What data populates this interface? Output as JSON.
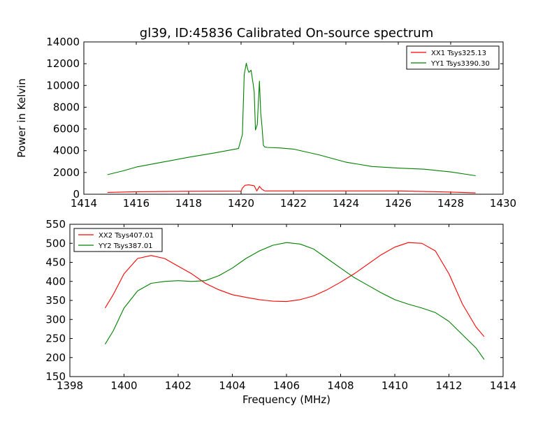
{
  "figure": {
    "title": "gl39, ID:45836 Calibrated On-source spectrum",
    "colors": {
      "red": "#ff0000",
      "green": "#008000",
      "axis": "#000000"
    }
  },
  "chart_data": [
    {
      "type": "line",
      "ylabel": "Power in Kelvin",
      "xlabel": "",
      "xlim": [
        1414,
        1430
      ],
      "ylim": [
        0,
        14000
      ],
      "xticks": [
        "1414",
        "1416",
        "1418",
        "1420",
        "1422",
        "1424",
        "1426",
        "1428",
        "1430"
      ],
      "yticks": [
        "0",
        "2000",
        "4000",
        "6000",
        "8000",
        "10000",
        "12000",
        "14000"
      ],
      "legend_position": "top-right",
      "grid": false,
      "series": [
        {
          "name": "XX1 Tsys325.13",
          "color": "#ff0000",
          "x": [
            1414.9,
            1416,
            1418,
            1420,
            1420.05,
            1420.15,
            1420.3,
            1420.5,
            1420.6,
            1420.7,
            1420.8,
            1420.9,
            1421,
            1422,
            1424,
            1426,
            1428,
            1428.95
          ],
          "y": [
            170,
            230,
            270,
            280,
            560,
            820,
            860,
            780,
            300,
            720,
            450,
            310,
            300,
            300,
            300,
            300,
            200,
            120
          ]
        },
        {
          "name": "YY1 Tsys3390.30",
          "color": "#008000",
          "x": [
            1414.9,
            1415.5,
            1416,
            1417,
            1418,
            1419,
            1419.9,
            1420.05,
            1420.12,
            1420.2,
            1420.25,
            1420.3,
            1420.38,
            1420.45,
            1420.5,
            1420.55,
            1420.62,
            1420.7,
            1420.75,
            1420.8,
            1420.85,
            1420.9,
            1421,
            1421.5,
            1422,
            1423,
            1424,
            1425,
            1426,
            1427,
            1428,
            1428.95
          ],
          "y": [
            1800,
            2150,
            2500,
            2950,
            3400,
            3800,
            4200,
            5500,
            11000,
            12050,
            11500,
            11200,
            11400,
            10300,
            9400,
            5900,
            6400,
            10400,
            7500,
            6200,
            4500,
            4350,
            4300,
            4250,
            4150,
            3600,
            2950,
            2550,
            2400,
            2300,
            2050,
            1700
          ]
        }
      ]
    },
    {
      "type": "line",
      "ylabel": "",
      "xlabel": "Frequency (MHz)",
      "xlim": [
        1398,
        1414
      ],
      "ylim": [
        150,
        550
      ],
      "xticks": [
        "1398",
        "1400",
        "1402",
        "1404",
        "1406",
        "1408",
        "1410",
        "1412",
        "1414"
      ],
      "yticks": [
        "150",
        "200",
        "250",
        "300",
        "350",
        "400",
        "450",
        "500",
        "550"
      ],
      "legend_position": "top-left",
      "grid": false,
      "series": [
        {
          "name": "XX2 Tsys407.01",
          "color": "#ff0000",
          "x": [
            1399.3,
            1399.6,
            1400,
            1400.5,
            1401,
            1401.5,
            1402,
            1402.5,
            1403,
            1403.5,
            1404,
            1404.5,
            1405,
            1405.5,
            1406,
            1406.5,
            1407,
            1407.5,
            1408,
            1408.5,
            1409,
            1409.5,
            1410,
            1410.5,
            1411,
            1411.5,
            1412,
            1412.5,
            1413,
            1413.3
          ],
          "y": [
            330,
            365,
            420,
            460,
            468,
            460,
            440,
            420,
            395,
            378,
            365,
            358,
            352,
            348,
            347,
            352,
            362,
            378,
            398,
            420,
            445,
            470,
            490,
            502,
            500,
            480,
            420,
            340,
            280,
            255
          ]
        },
        {
          "name": "YY2 Tsys387.01",
          "color": "#008000",
          "x": [
            1399.3,
            1399.6,
            1400,
            1400.5,
            1401,
            1401.5,
            1402,
            1402.5,
            1403,
            1403.5,
            1404,
            1404.5,
            1405,
            1405.5,
            1406,
            1406.5,
            1407,
            1407.5,
            1408,
            1408.5,
            1409,
            1409.5,
            1410,
            1410.5,
            1411,
            1411.5,
            1412,
            1412.5,
            1413,
            1413.3
          ],
          "y": [
            235,
            270,
            330,
            375,
            395,
            400,
            402,
            400,
            402,
            415,
            435,
            460,
            480,
            495,
            502,
            498,
            485,
            460,
            435,
            410,
            390,
            370,
            352,
            340,
            330,
            318,
            295,
            260,
            225,
            195
          ]
        }
      ]
    }
  ]
}
